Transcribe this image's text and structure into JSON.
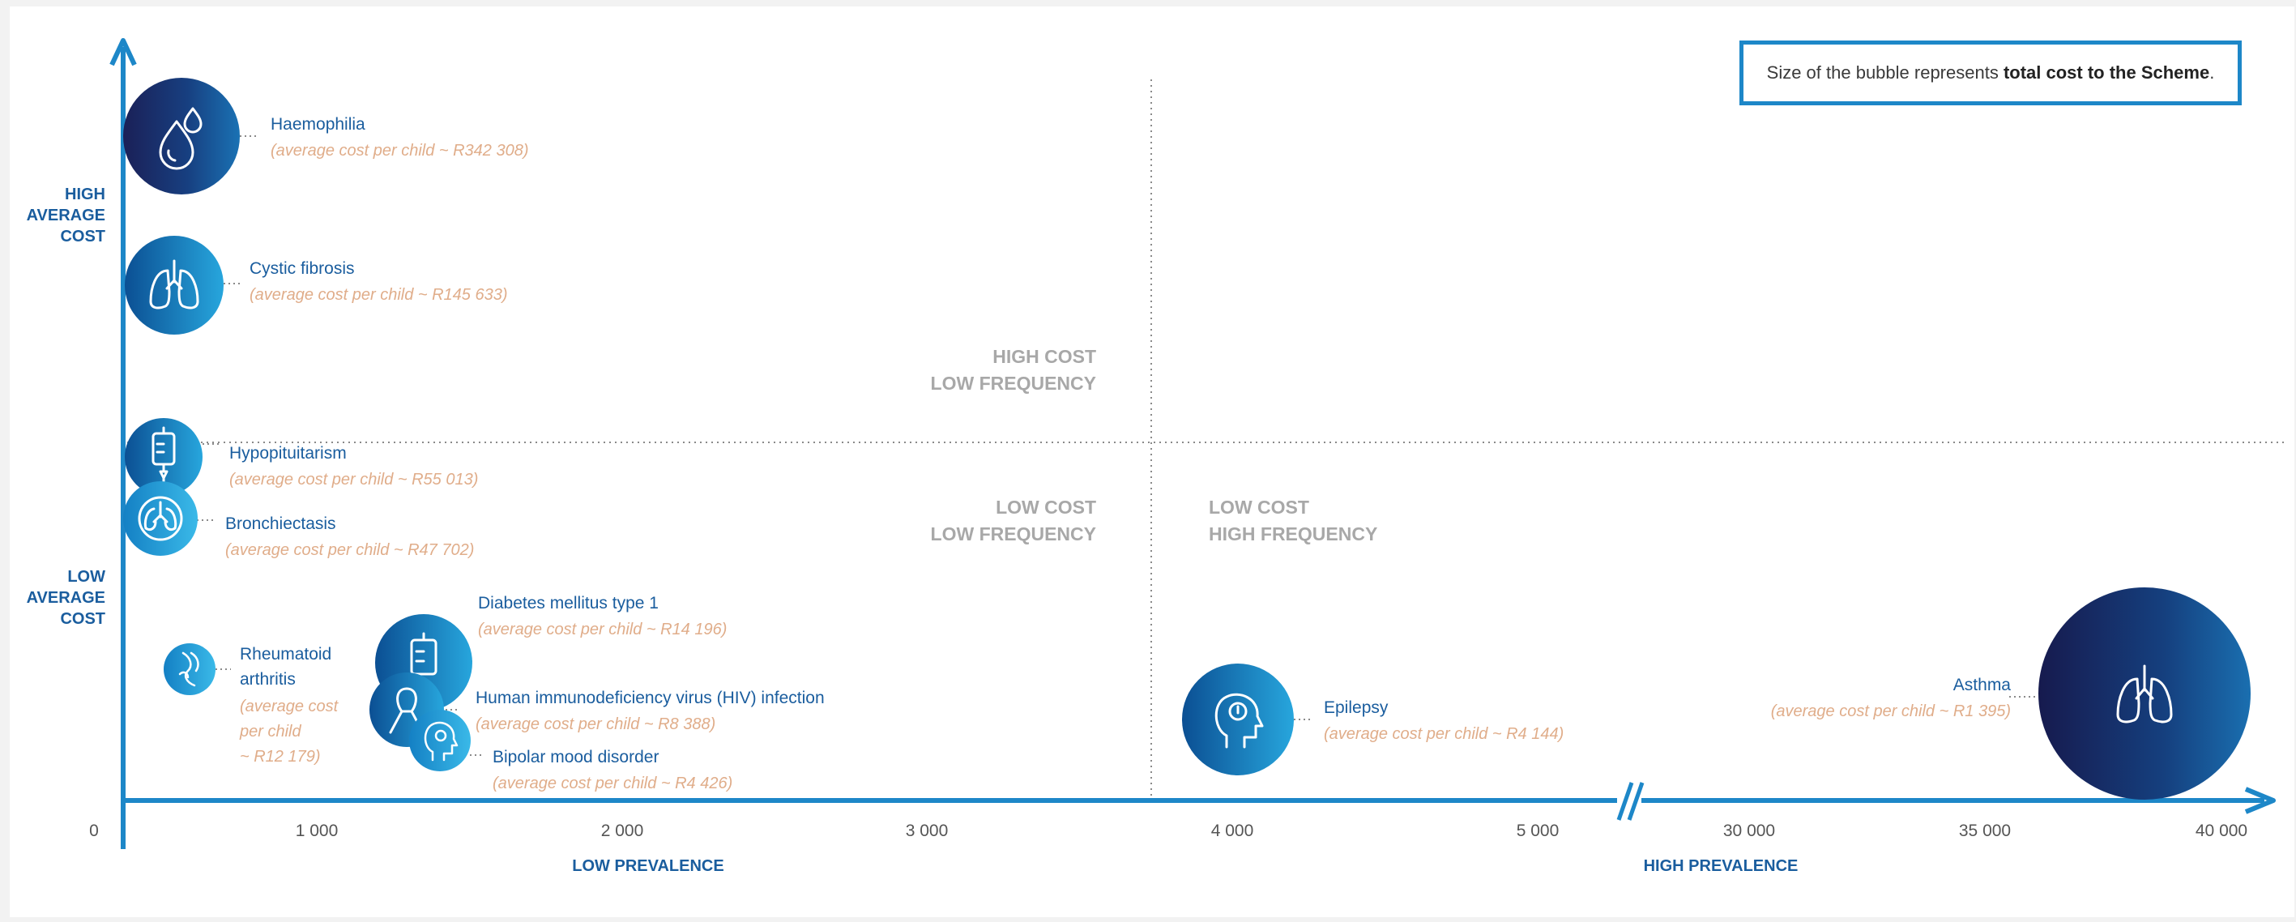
{
  "note": {
    "prefix": "Size of the bubble represents ",
    "bold": "total cost to the Scheme",
    "suffix": "."
  },
  "colors": {
    "axis": "#1d87c8",
    "label_blue": "#1a5d9e",
    "cost_text": "#e0ad8a",
    "quadrant_text": "#a8a8a8",
    "bubble_dark": "#1d2a63",
    "bubble_mid": "#0e5fa6",
    "bubble_light": "#25a9e0"
  },
  "chart_data": {
    "type": "scatter",
    "x_axis_ticks": [
      "0",
      "1 000",
      "2 000",
      "3 000",
      "4 000",
      "5 000",
      "30 000",
      "35 000",
      "40 000"
    ],
    "x_axis_break": "between 5 000 and 30 000",
    "x_labels": [
      "LOW PREVALENCE",
      "HIGH PREVALENCE"
    ],
    "y_labels": [
      "HIGH AVERAGE COST",
      "LOW AVERAGE COST"
    ],
    "quadrants": [
      "HIGH COST LOW FREQUENCY",
      "LOW COST LOW FREQUENCY",
      "LOW COST HIGH FREQUENCY"
    ],
    "points": [
      {
        "name": "Haemophilia",
        "cost_label": "(average cost per child ~ R342 308)",
        "avg_cost": 342308,
        "icon": "drops-icon"
      },
      {
        "name": "Cystic fibrosis",
        "cost_label": "(average cost per child ~ R145 633)",
        "avg_cost": 145633,
        "icon": "lungs-icon"
      },
      {
        "name": "Hypopituitarism",
        "cost_label": "(average cost per child ~ R55 013)",
        "avg_cost": 55013,
        "icon": "iv-drip-icon"
      },
      {
        "name": "Bronchiectasis",
        "cost_label": "(average cost per child ~ R47 702)",
        "avg_cost": 47702,
        "icon": "lungs-round-icon"
      },
      {
        "name": "Diabetes mellitus type 1",
        "cost_label": "(average cost per child ~ R14 196)",
        "avg_cost": 14196,
        "icon": "iv-drip-icon"
      },
      {
        "name": "Rheumatoid arthritis",
        "cost_label": "(average cost per child ~ R12 179)",
        "avg_cost": 12179,
        "icon": "joint-icon"
      },
      {
        "name": "Human immunodeficiency virus (HIV) infection",
        "cost_label": "(average cost per child ~ R8 388)",
        "avg_cost": 8388,
        "icon": "ribbon-icon"
      },
      {
        "name": "Bipolar mood disorder",
        "cost_label": "(average cost per child ~ R4 426)",
        "avg_cost": 4426,
        "icon": "head-icon"
      },
      {
        "name": "Epilepsy",
        "cost_label": "(average cost per child ~ R4 144)",
        "avg_cost": 4144,
        "icon": "head-icon"
      },
      {
        "name": "Asthma",
        "cost_label": "(average cost per child ~ R1 395)",
        "avg_cost": 1395,
        "icon": "lungs-icon"
      }
    ]
  }
}
